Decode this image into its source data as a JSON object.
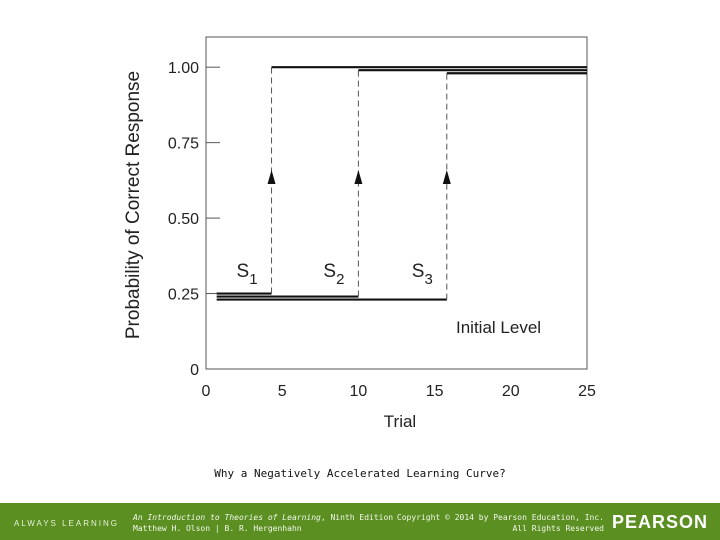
{
  "chart_data": {
    "type": "line",
    "title": "",
    "xlabel": "Trial",
    "ylabel": "Probability of Correct Response",
    "xlim": [
      0,
      25
    ],
    "ylim": [
      0,
      1.1
    ],
    "x_ticks": [
      "0",
      "5",
      "10",
      "15",
      "20",
      "25"
    ],
    "y_ticks": [
      "0",
      "0.25",
      "0.50",
      "0.75",
      "1.00"
    ],
    "grid": false,
    "legend": "none",
    "series": [
      {
        "name": "S1",
        "jump_trial": 4.3,
        "points": [
          [
            0.7,
            0.25
          ],
          [
            4.3,
            0.25
          ],
          [
            4.3,
            1.0
          ],
          [
            25,
            1.0
          ]
        ]
      },
      {
        "name": "S2",
        "jump_trial": 10.0,
        "points": [
          [
            0.7,
            0.24
          ],
          [
            10.0,
            0.24
          ],
          [
            10.0,
            0.99
          ],
          [
            25,
            0.99
          ]
        ]
      },
      {
        "name": "S3",
        "jump_trial": 15.8,
        "points": [
          [
            0.7,
            0.23
          ],
          [
            15.8,
            0.23
          ],
          [
            15.8,
            0.98
          ],
          [
            25,
            0.98
          ]
        ]
      }
    ],
    "annotations": {
      "initial_level": "Initial Level"
    }
  },
  "caption": "Why a Negatively Accelerated Learning Curve?",
  "footer": {
    "always_learning": "ALWAYS LEARNING",
    "book_title": "An Introduction to Theories of Learning",
    "book_edition": ", Ninth Edition",
    "authors": "Matthew H. Olson | B. R. Hergenhahn",
    "copyright": "Copyright © 2014 by Pearson Education, Inc.",
    "rights": "All Rights Reserved",
    "brand": "PEARSON"
  }
}
